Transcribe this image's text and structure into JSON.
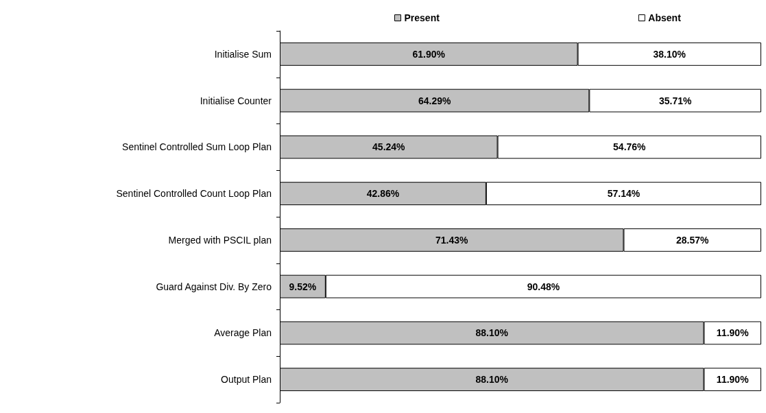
{
  "chart_data": {
    "type": "bar",
    "orientation": "horizontal",
    "stacked": true,
    "legend": "top",
    "categories": [
      "Initialise Sum",
      "Initialise Counter",
      "Sentinel Controlled Sum Loop Plan",
      "Sentinel Controlled Count Loop Plan",
      "Merged with PSCIL plan",
      "Guard Against Div. By Zero",
      "Average Plan",
      "Output Plan"
    ],
    "series": [
      {
        "name": "Present",
        "color": "#c0c0c0",
        "values": [
          61.9,
          64.29,
          45.24,
          42.86,
          71.43,
          9.52,
          88.1,
          88.1
        ],
        "value_labels": [
          "61.90%",
          "64.29%",
          "45.24%",
          "42.86%",
          "71.43%",
          "9.52%",
          "88.10%",
          "88.10%"
        ]
      },
      {
        "name": "Absent",
        "color": "#ffffff",
        "values": [
          38.1,
          35.71,
          54.76,
          57.14,
          28.57,
          90.48,
          11.9,
          11.9
        ],
        "value_labels": [
          "38.10%",
          "35.71%",
          "54.76%",
          "57.14%",
          "28.57%",
          "90.48%",
          "11.90%",
          "11.90%"
        ]
      }
    ]
  }
}
